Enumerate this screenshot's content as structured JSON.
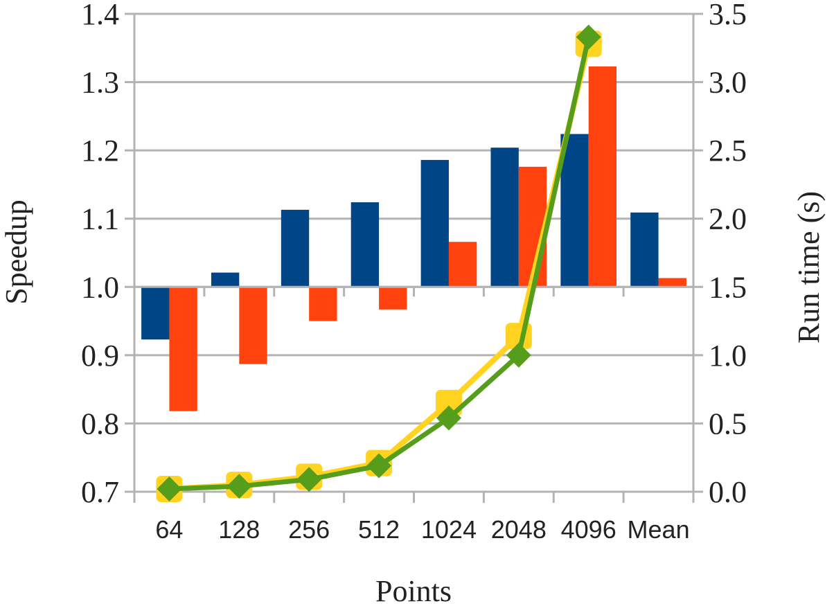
{
  "chart_data": {
    "type": "bar",
    "categories": [
      "64",
      "128",
      "256",
      "512",
      "1024",
      "2048",
      "4096",
      "Mean"
    ],
    "xlabel": "Points",
    "ylabel": "Speedup",
    "y2label": "Run time (s)",
    "ylim": [
      0.7,
      1.4
    ],
    "y2lim": [
      0.0,
      3.5
    ],
    "yticks": [
      "0.7",
      "0.8",
      "0.9",
      "1.0",
      "1.1",
      "1.2",
      "1.3",
      "1.4"
    ],
    "y2ticks": [
      "0.0",
      "0.5",
      "1.0",
      "1.5",
      "2.0",
      "2.5",
      "3.0",
      "3.5"
    ],
    "baseline": 1.0,
    "grid": true,
    "legend": "none",
    "bar_series": [
      {
        "color": "#004586",
        "values": [
          0.923,
          1.021,
          1.113,
          1.124,
          1.186,
          1.204,
          1.224,
          1.109
        ]
      },
      {
        "color": "#ff420e",
        "values": [
          0.818,
          0.887,
          0.95,
          0.967,
          1.066,
          1.176,
          1.323,
          1.013
        ]
      }
    ],
    "line_series": [
      {
        "color": "#ffd320",
        "marker": "square",
        "axis": "right",
        "values": [
          0.02,
          0.05,
          0.11,
          0.21,
          0.65,
          1.14,
          3.28
        ]
      },
      {
        "color": "#579d1c",
        "marker": "diamond",
        "axis": "right",
        "values": [
          0.02,
          0.04,
          0.09,
          0.19,
          0.54,
          1.0,
          3.33
        ]
      }
    ]
  }
}
